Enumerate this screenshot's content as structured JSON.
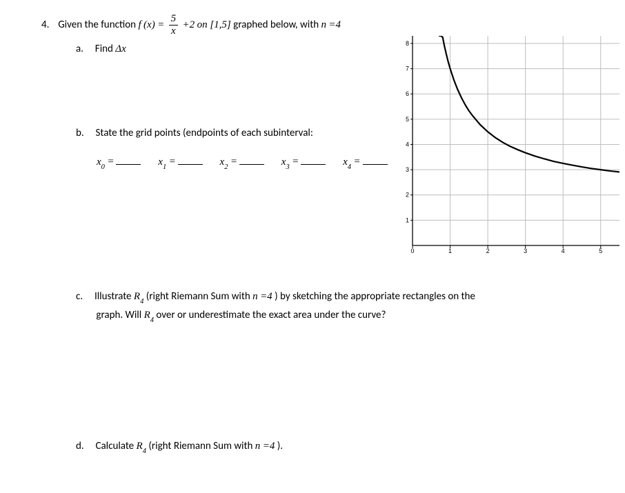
{
  "problem": {
    "number": "4.",
    "lead": "Given the function ",
    "func_f": "f",
    "func_x": "x",
    "frac_num": "5",
    "frac_den": "x",
    "plus2": "+2",
    "on_text": " on ",
    "interval": "[1,5]",
    "graphed_text": "graphed below, with ",
    "n_text": "n",
    "equals4": "=4"
  },
  "partA": {
    "letter": "a.",
    "text1": "Find ",
    "delta": "Δ",
    "x": "x"
  },
  "partB": {
    "letter": "b.",
    "text": "State the grid points (endpoints of each subinterval:",
    "x": "x",
    "labels": [
      "0",
      "1",
      "2",
      "3",
      "4"
    ],
    "eq": "="
  },
  "partC": {
    "letter": "c.",
    "text1": "Illustrate ",
    "R": "R",
    "sub4": "4",
    "text2": " (right Riemann Sum with ",
    "n": "n",
    "eq4": "=4",
    "text3": ") by sketching the appropriate rectangles on the",
    "text4": "graph.  Will ",
    "text5": " over or underestimate the exact area under the curve?"
  },
  "partD": {
    "letter": "d.",
    "text1": "Calculate ",
    "R": "R",
    "sub4": "4",
    "text2": " (right Riemann Sum with ",
    "n": "n",
    "eq4": "=4",
    "text3": ")."
  },
  "chart": {
    "xlim": [
      0,
      5.5
    ],
    "ylim": [
      0,
      8.3
    ],
    "x_ticks": [
      0,
      1,
      2,
      3,
      4,
      5
    ],
    "y_ticks": [
      0,
      1,
      2,
      3,
      4,
      5,
      6,
      7,
      8
    ],
    "grid_color": "#bdbdbd",
    "axis_color": "#000000",
    "curve_color": "#000000",
    "curve_points": [
      [
        0.7,
        9.14
      ],
      [
        0.75,
        8.67
      ],
      [
        0.8,
        8.25
      ],
      [
        0.85,
        7.88
      ],
      [
        0.9,
        7.56
      ],
      [
        0.95,
        7.26
      ],
      [
        1.0,
        7.0
      ],
      [
        1.1,
        6.55
      ],
      [
        1.2,
        6.17
      ],
      [
        1.3,
        5.85
      ],
      [
        1.4,
        5.57
      ],
      [
        1.5,
        5.33
      ],
      [
        1.6,
        5.13
      ],
      [
        1.8,
        4.78
      ],
      [
        2.0,
        4.5
      ],
      [
        2.2,
        4.27
      ],
      [
        2.4,
        4.08
      ],
      [
        2.6,
        3.92
      ],
      [
        2.8,
        3.79
      ],
      [
        3.0,
        3.67
      ],
      [
        3.25,
        3.54
      ],
      [
        3.5,
        3.43
      ],
      [
        3.75,
        3.33
      ],
      [
        4.0,
        3.25
      ],
      [
        4.25,
        3.18
      ],
      [
        4.5,
        3.11
      ],
      [
        4.75,
        3.05
      ],
      [
        5.0,
        3.0
      ],
      [
        5.25,
        2.95
      ],
      [
        5.5,
        2.91
      ]
    ]
  }
}
